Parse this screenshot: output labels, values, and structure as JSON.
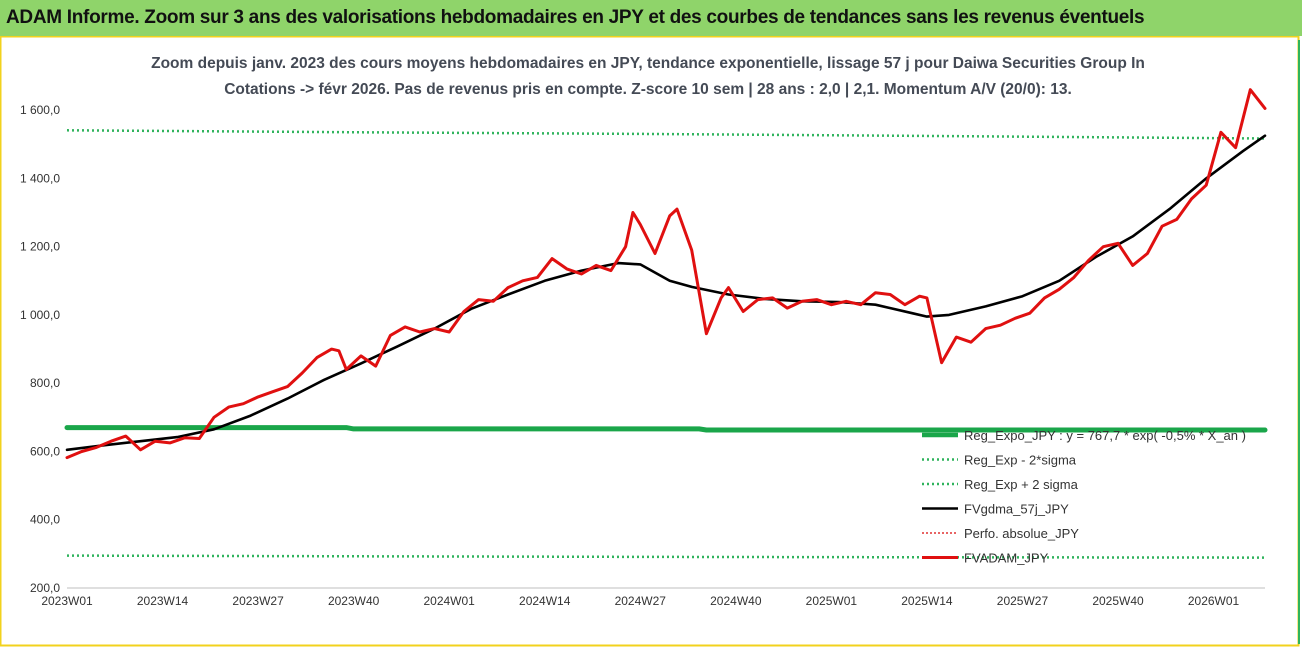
{
  "header": {
    "title": "ADAM Informe. Zoom sur 3 ans des valorisations hebdomadaires en JPY et des courbes de tendances sans les revenus éventuels"
  },
  "colors": {
    "header_bg": "#8fd46a",
    "frame_border": "#f2d21c",
    "reg_expo": "#1aa64a",
    "sigma_bands": "#2fb35c",
    "fvgdma": "#000000",
    "perfo": "#e03030",
    "fvadam": "#e01010"
  },
  "chart_data": {
    "type": "line",
    "title_lines": [
      "Zoom depuis janv. 2023 des cours moyens hebdomadaires en JPY, tendance exponentielle, lissage 57 j pour Daiwa Securities Group In",
      "Cotations -> févr 2026. Pas de revenus pris en compte. Z-score 10 sem | 28 ans : 2,0 | 2,1. Momentum A/V (20/0): 13."
    ],
    "x_ticks": [
      {
        "label": "2023W01",
        "week": 0
      },
      {
        "label": "2023W14",
        "week": 13
      },
      {
        "label": "2023W27",
        "week": 26
      },
      {
        "label": "2023W40",
        "week": 39
      },
      {
        "label": "2024W01",
        "week": 52
      },
      {
        "label": "2024W14",
        "week": 65
      },
      {
        "label": "2024W27",
        "week": 78
      },
      {
        "label": "2024W40",
        "week": 91
      },
      {
        "label": "2025W01",
        "week": 104
      },
      {
        "label": "2025W14",
        "week": 117
      },
      {
        "label": "2025W27",
        "week": 130
      },
      {
        "label": "2025W40",
        "week": 143
      },
      {
        "label": "2026W01",
        "week": 156
      }
    ],
    "x_range": [
      0,
      163
    ],
    "y_range": [
      200,
      1700
    ],
    "y_ticks": [
      {
        "label": "200,0",
        "value": 200
      },
      {
        "label": "400,0",
        "value": 400
      },
      {
        "label": "600,0",
        "value": 600
      },
      {
        "label": "800,0",
        "value": 800
      },
      {
        "label": "1 000,0",
        "value": 1000
      },
      {
        "label": "1 200,0",
        "value": 1200
      },
      {
        "label": "1 400,0",
        "value": 1400
      },
      {
        "label": "1 600,0",
        "value": 1600
      }
    ],
    "grid": false,
    "legend_position": "bottom-right",
    "series": [
      {
        "name": "Reg_Expo_JPY : y = 767,7 * exp( -0,5% * X_an )",
        "key": "reg",
        "style": "thick",
        "x": [
          0,
          38,
          39,
          86,
          87,
          163
        ],
        "y": [
          670,
          670,
          666,
          666,
          663,
          663
        ]
      },
      {
        "name": "Reg_Exp - 2*sigma",
        "key": "low",
        "style": "dotted",
        "x": [
          0,
          40,
          80,
          120,
          163
        ],
        "y": [
          295,
          293,
          291,
          290,
          289
        ]
      },
      {
        "name": "Reg_Exp + 2 sigma",
        "key": "high",
        "style": "dotted",
        "x": [
          0,
          40,
          80,
          120,
          163
        ],
        "y": [
          1541,
          1535,
          1530,
          1524,
          1517
        ]
      },
      {
        "name": "FVgdma_57j_JPY",
        "key": "fv",
        "style": "solid",
        "x": [
          0,
          5,
          10,
          15,
          20,
          25,
          30,
          35,
          40,
          45,
          50,
          55,
          60,
          65,
          70,
          75,
          78,
          82,
          85,
          90,
          95,
          100,
          105,
          110,
          115,
          117,
          120,
          125,
          130,
          135,
          140,
          145,
          150,
          155,
          160,
          163
        ],
        "y": [
          605,
          618,
          630,
          642,
          665,
          705,
          755,
          810,
          858,
          908,
          960,
          1018,
          1060,
          1100,
          1130,
          1152,
          1148,
          1100,
          1082,
          1060,
          1047,
          1040,
          1038,
          1030,
          1005,
          995,
          1000,
          1025,
          1055,
          1100,
          1170,
          1230,
          1310,
          1400,
          1480,
          1525
        ]
      },
      {
        "name": "Perfo. absolue_JPY",
        "key": "perfo",
        "style": "dotted-red",
        "x": [],
        "y": []
      },
      {
        "name": "FVADAM_JPY",
        "key": "price",
        "style": "thick-red",
        "x": [
          0,
          2,
          4,
          6,
          8,
          10,
          12,
          14,
          16,
          18,
          20,
          22,
          24,
          26,
          28,
          30,
          32,
          34,
          36,
          37,
          38,
          40,
          42,
          44,
          46,
          48,
          50,
          52,
          54,
          56,
          58,
          60,
          62,
          64,
          66,
          68,
          70,
          72,
          74,
          76,
          77,
          78,
          80,
          82,
          83,
          85,
          87,
          89,
          90,
          92,
          94,
          96,
          98,
          100,
          102,
          104,
          106,
          108,
          110,
          112,
          114,
          116,
          117,
          119,
          121,
          123,
          125,
          127,
          129,
          131,
          133,
          135,
          137,
          139,
          141,
          143,
          145,
          147,
          149,
          151,
          153,
          155,
          157,
          159,
          161,
          163
        ],
        "y": [
          582,
          600,
          612,
          630,
          645,
          605,
          630,
          625,
          640,
          638,
          700,
          730,
          740,
          760,
          775,
          790,
          830,
          875,
          900,
          895,
          840,
          880,
          850,
          940,
          965,
          950,
          960,
          950,
          1010,
          1045,
          1040,
          1080,
          1100,
          1110,
          1165,
          1135,
          1120,
          1145,
          1130,
          1200,
          1300,
          1265,
          1180,
          1290,
          1310,
          1190,
          945,
          1050,
          1080,
          1010,
          1045,
          1050,
          1020,
          1040,
          1045,
          1030,
          1040,
          1030,
          1065,
          1060,
          1030,
          1055,
          1050,
          860,
          935,
          920,
          960,
          970,
          990,
          1005,
          1050,
          1075,
          1110,
          1160,
          1200,
          1210,
          1145,
          1180,
          1260,
          1280,
          1340,
          1380,
          1535,
          1490,
          1660,
          1605
        ]
      }
    ]
  }
}
